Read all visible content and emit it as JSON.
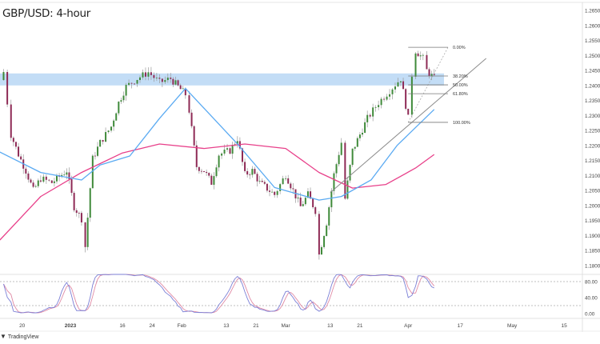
{
  "header": {
    "title": "GBP/USD: 4-hour"
  },
  "footer": {
    "logo_text": "TradingView"
  },
  "colors": {
    "bull": "#3f8a3a",
    "bear": "#8e2a55",
    "wick": "#9a9a9a",
    "ma_fast": "#5aaaf2",
    "ma_slow": "#e8408a",
    "zone": "#b9d7f5",
    "stoch": "#7b7fd6",
    "stoch_signal": "#e08aa5"
  },
  "chart_data": {
    "type": "candlestick",
    "title": "GBP/USD: 4-hour",
    "ylim": [
      1.1775,
      1.2675
    ],
    "y_ticks": [
      "1.26500",
      "1.26000",
      "1.25500",
      "1.25000",
      "1.24500",
      "1.24000",
      "1.23500",
      "1.23000",
      "1.22500",
      "1.22000",
      "1.21500",
      "1.21000",
      "1.20500",
      "1.20000",
      "1.19500",
      "1.19000",
      "1.18500",
      "1.18000"
    ],
    "x_ticks": [
      {
        "label": "20",
        "date": "2022-12-20"
      },
      {
        "label": "2023",
        "date": "2023-01-02"
      },
      {
        "label": "16",
        "date": "2023-01-16"
      },
      {
        "label": "24",
        "date": "2023-01-24"
      },
      {
        "label": "Feb",
        "date": "2023-02-01"
      },
      {
        "label": "13",
        "date": "2023-02-13"
      },
      {
        "label": "21",
        "date": "2023-02-21"
      },
      {
        "label": "Mar",
        "date": "2023-03-01"
      },
      {
        "label": "13",
        "date": "2023-03-13"
      },
      {
        "label": "21",
        "date": "2023-03-21"
      },
      {
        "label": "Apr",
        "date": "2023-04-03"
      },
      {
        "label": "17",
        "date": "2023-04-17"
      },
      {
        "label": "May",
        "date": "2023-05-01"
      },
      {
        "label": "15",
        "date": "2023-05-15"
      }
    ],
    "price_path": [
      [
        "2022-12-14",
        1.2418
      ],
      [
        "2022-12-15",
        1.2445
      ],
      [
        "2022-12-16",
        1.2343
      ],
      [
        "2022-12-17",
        1.2236
      ],
      [
        "2022-12-19",
        1.217
      ],
      [
        "2022-12-21",
        1.2116
      ],
      [
        "2022-12-23",
        1.205
      ],
      [
        "2022-12-25",
        1.209
      ],
      [
        "2022-12-28",
        1.2076
      ],
      [
        "2023-01-01",
        1.2116
      ],
      [
        "2023-01-03",
        1.1996
      ],
      [
        "2023-01-05",
        1.1956
      ],
      [
        "2023-01-06",
        1.1863
      ],
      [
        "2023-01-08",
        1.2156
      ],
      [
        "2023-01-10",
        1.221
      ],
      [
        "2023-01-13",
        1.2263
      ],
      [
        "2023-01-15",
        1.2343
      ],
      [
        "2023-01-17",
        1.2396
      ],
      [
        "2023-01-20",
        1.2423
      ],
      [
        "2023-01-23",
        1.2444
      ],
      [
        "2023-01-26",
        1.241
      ],
      [
        "2023-01-29",
        1.2423
      ],
      [
        "2023-01-31",
        1.2396
      ],
      [
        "2023-02-02",
        1.237
      ],
      [
        "2023-02-03",
        1.2316
      ],
      [
        "2023-02-05",
        1.213
      ],
      [
        "2023-02-07",
        1.2116
      ],
      [
        "2023-02-09",
        1.2076
      ],
      [
        "2023-02-11",
        1.217
      ],
      [
        "2023-02-14",
        1.2183
      ],
      [
        "2023-02-16",
        1.2223
      ],
      [
        "2023-02-18",
        1.2103
      ],
      [
        "2023-02-20",
        1.2116
      ],
      [
        "2023-02-22",
        1.2076
      ],
      [
        "2023-02-26",
        1.2036
      ],
      [
        "2023-03-01",
        1.2103
      ],
      [
        "2023-03-03",
        1.205
      ],
      [
        "2023-03-05",
        1.1996
      ],
      [
        "2023-03-07",
        1.2036
      ],
      [
        "2023-03-09",
        1.1983
      ],
      [
        "2023-03-10",
        1.1836
      ],
      [
        "2023-03-12",
        1.1943
      ],
      [
        "2023-03-14",
        1.2103
      ],
      [
        "2023-03-16",
        1.221
      ],
      [
        "2023-03-17",
        1.2023
      ],
      [
        "2023-03-19",
        1.2183
      ],
      [
        "2023-03-23",
        1.229
      ],
      [
        "2023-03-26",
        1.2343
      ],
      [
        "2023-03-29",
        1.2383
      ],
      [
        "2023-04-01",
        1.2423
      ],
      [
        "2023-04-03",
        1.229
      ],
      [
        "2023-04-04",
        1.2436
      ],
      [
        "2023-04-05",
        1.2516
      ],
      [
        "2023-04-07",
        1.249
      ],
      [
        "2023-04-08",
        1.245
      ],
      [
        "2023-04-10",
        1.2423
      ]
    ],
    "ma_fast": [
      [
        "2022-12-14",
        1.2178
      ],
      [
        "2022-12-25",
        1.211
      ],
      [
        "2023-01-05",
        1.2085
      ],
      [
        "2023-01-10",
        1.2135
      ],
      [
        "2023-01-18",
        1.2165
      ],
      [
        "2023-01-26",
        1.229
      ],
      [
        "2023-02-02",
        1.239
      ],
      [
        "2023-02-16",
        1.2205
      ],
      [
        "2023-02-26",
        1.206
      ],
      [
        "2023-03-10",
        1.2018
      ],
      [
        "2023-03-16",
        1.203
      ],
      [
        "2023-03-24",
        1.2085
      ],
      [
        "2023-03-31",
        1.22
      ],
      [
        "2023-04-10",
        1.232
      ]
    ],
    "ma_slow": [
      [
        "2022-12-14",
        1.1885
      ],
      [
        "2022-12-25",
        1.203
      ],
      [
        "2023-01-05",
        1.211
      ],
      [
        "2023-01-16",
        1.2175
      ],
      [
        "2023-01-26",
        1.2205
      ],
      [
        "2023-02-07",
        1.219
      ],
      [
        "2023-02-18",
        1.2205
      ],
      [
        "2023-03-01",
        1.219
      ],
      [
        "2023-03-10",
        1.211
      ],
      [
        "2023-03-19",
        1.2058
      ],
      [
        "2023-03-28",
        1.207
      ],
      [
        "2023-04-05",
        1.2125
      ],
      [
        "2023-04-10",
        1.217
      ]
    ],
    "resistance_zone": [
      1.24,
      1.244
    ],
    "trendline": [
      [
        "2023-03-13",
        1.2043
      ],
      [
        "2023-04-24",
        1.249
      ]
    ],
    "fibonacci": {
      "start": [
        "2023-04-03",
        1.2277
      ],
      "end": [
        "2023-04-05",
        1.2527
      ],
      "levels": [
        {
          "label": "0.00%",
          "ratio": 0
        },
        {
          "label": "38.20%",
          "ratio": 0.382
        },
        {
          "label": "50.00%",
          "ratio": 0.5
        },
        {
          "label": "61.80%",
          "ratio": 0.618
        },
        {
          "label": "100.00%",
          "ratio": 1
        }
      ]
    },
    "stochastic": {
      "y_ticks": [
        "80.00",
        "40.00",
        "0.00"
      ],
      "ylim": [
        0,
        100
      ],
      "levels": [
        80,
        20
      ]
    }
  }
}
